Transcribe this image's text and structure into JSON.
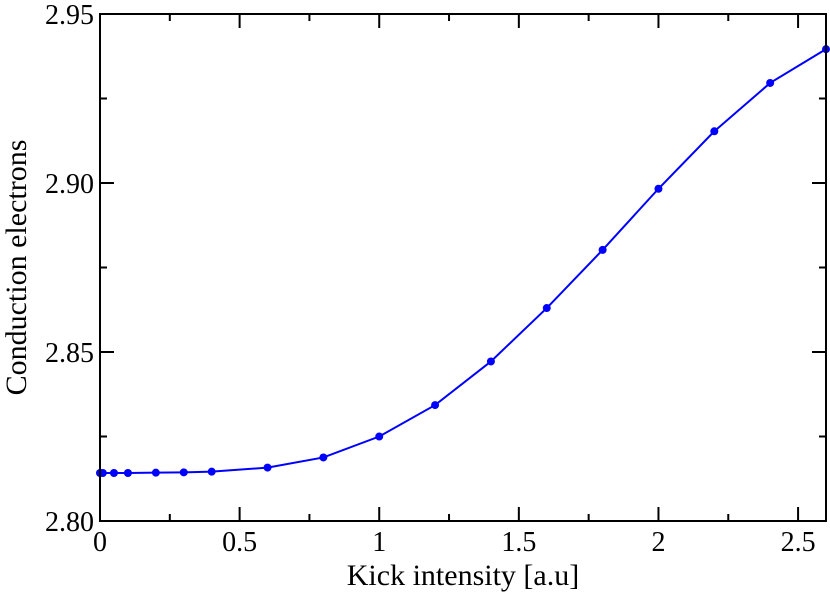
{
  "chart_data": {
    "type": "line",
    "title": "",
    "xlabel": "Kick intensity [a.u]",
    "ylabel": "Conduction electrons",
    "xlim": [
      0,
      2.6
    ],
    "ylim": [
      2.8,
      2.95
    ],
    "x_ticks": [
      {
        "value": 0,
        "label": "0"
      },
      {
        "value": 0.5,
        "label": "0.5"
      },
      {
        "value": 1,
        "label": "1"
      },
      {
        "value": 1.5,
        "label": "1.5"
      },
      {
        "value": 2,
        "label": "2"
      },
      {
        "value": 2.5,
        "label": "2.5"
      }
    ],
    "y_ticks": [
      {
        "value": 2.8,
        "label": "2.80"
      },
      {
        "value": 2.85,
        "label": "2.85"
      },
      {
        "value": 2.9,
        "label": "2.90"
      },
      {
        "value": 2.95,
        "label": "2.95"
      }
    ],
    "grid": false,
    "series": [
      {
        "color": "#0000ff",
        "x": [
          0,
          0.01,
          0.05,
          0.1,
          0.2,
          0.3,
          0.4,
          0.6,
          0.8,
          1.0,
          1.2,
          1.4,
          1.6,
          1.8,
          2.0,
          2.2,
          2.4,
          2.6
        ],
        "y": [
          2.8142,
          2.8142,
          2.8142,
          2.8142,
          2.8143,
          2.8144,
          2.8146,
          2.8158,
          2.8188,
          2.825,
          2.8343,
          2.8472,
          2.863,
          2.8802,
          2.8983,
          2.9153,
          2.9296,
          2.9396
        ]
      }
    ]
  }
}
